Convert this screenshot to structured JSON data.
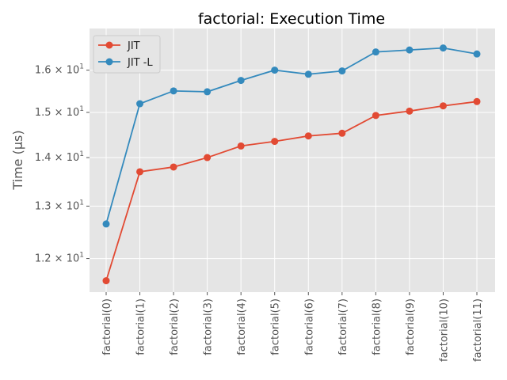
{
  "chart_data": {
    "type": "line",
    "title": "factorial: Execution Time",
    "xlabel": "",
    "ylabel": "Time (µs)",
    "yscale": "log",
    "ylim": [
      11.4,
      17.05
    ],
    "categories": [
      "factorial(0)",
      "factorial(1)",
      "factorial(2)",
      "factorial(3)",
      "factorial(4)",
      "factorial(5)",
      "factorial(6)",
      "factorial(7)",
      "factorial(8)",
      "factorial(9)",
      "factorial(10)",
      "factorial(11)"
    ],
    "series": [
      {
        "name": "JIT",
        "color": "#E24A33",
        "values": [
          11.6,
          13.7,
          13.8,
          14.0,
          14.25,
          14.35,
          14.47,
          14.53,
          14.93,
          15.03,
          15.15,
          15.25
        ]
      },
      {
        "name": "JIT -L",
        "color": "#348ABD",
        "values": [
          12.65,
          15.2,
          15.5,
          15.48,
          15.75,
          16.0,
          15.9,
          15.98,
          16.45,
          16.5,
          16.55,
          16.4
        ]
      }
    ],
    "yticks": [
      {
        "value": 12,
        "mantissa": "1.2",
        "base": "10",
        "exp": "1"
      },
      {
        "value": 13,
        "mantissa": "1.3",
        "base": "10",
        "exp": "1"
      },
      {
        "value": 14,
        "mantissa": "1.4",
        "base": "10",
        "exp": "1"
      },
      {
        "value": 15,
        "mantissa": "1.5",
        "base": "10",
        "exp": "1"
      },
      {
        "value": 16,
        "mantissa": "1.6",
        "base": "10",
        "exp": "1"
      }
    ],
    "grid": true,
    "legend_position": "top-left",
    "background": "#E5E5E5",
    "grid_color": "#FFFFFF"
  }
}
